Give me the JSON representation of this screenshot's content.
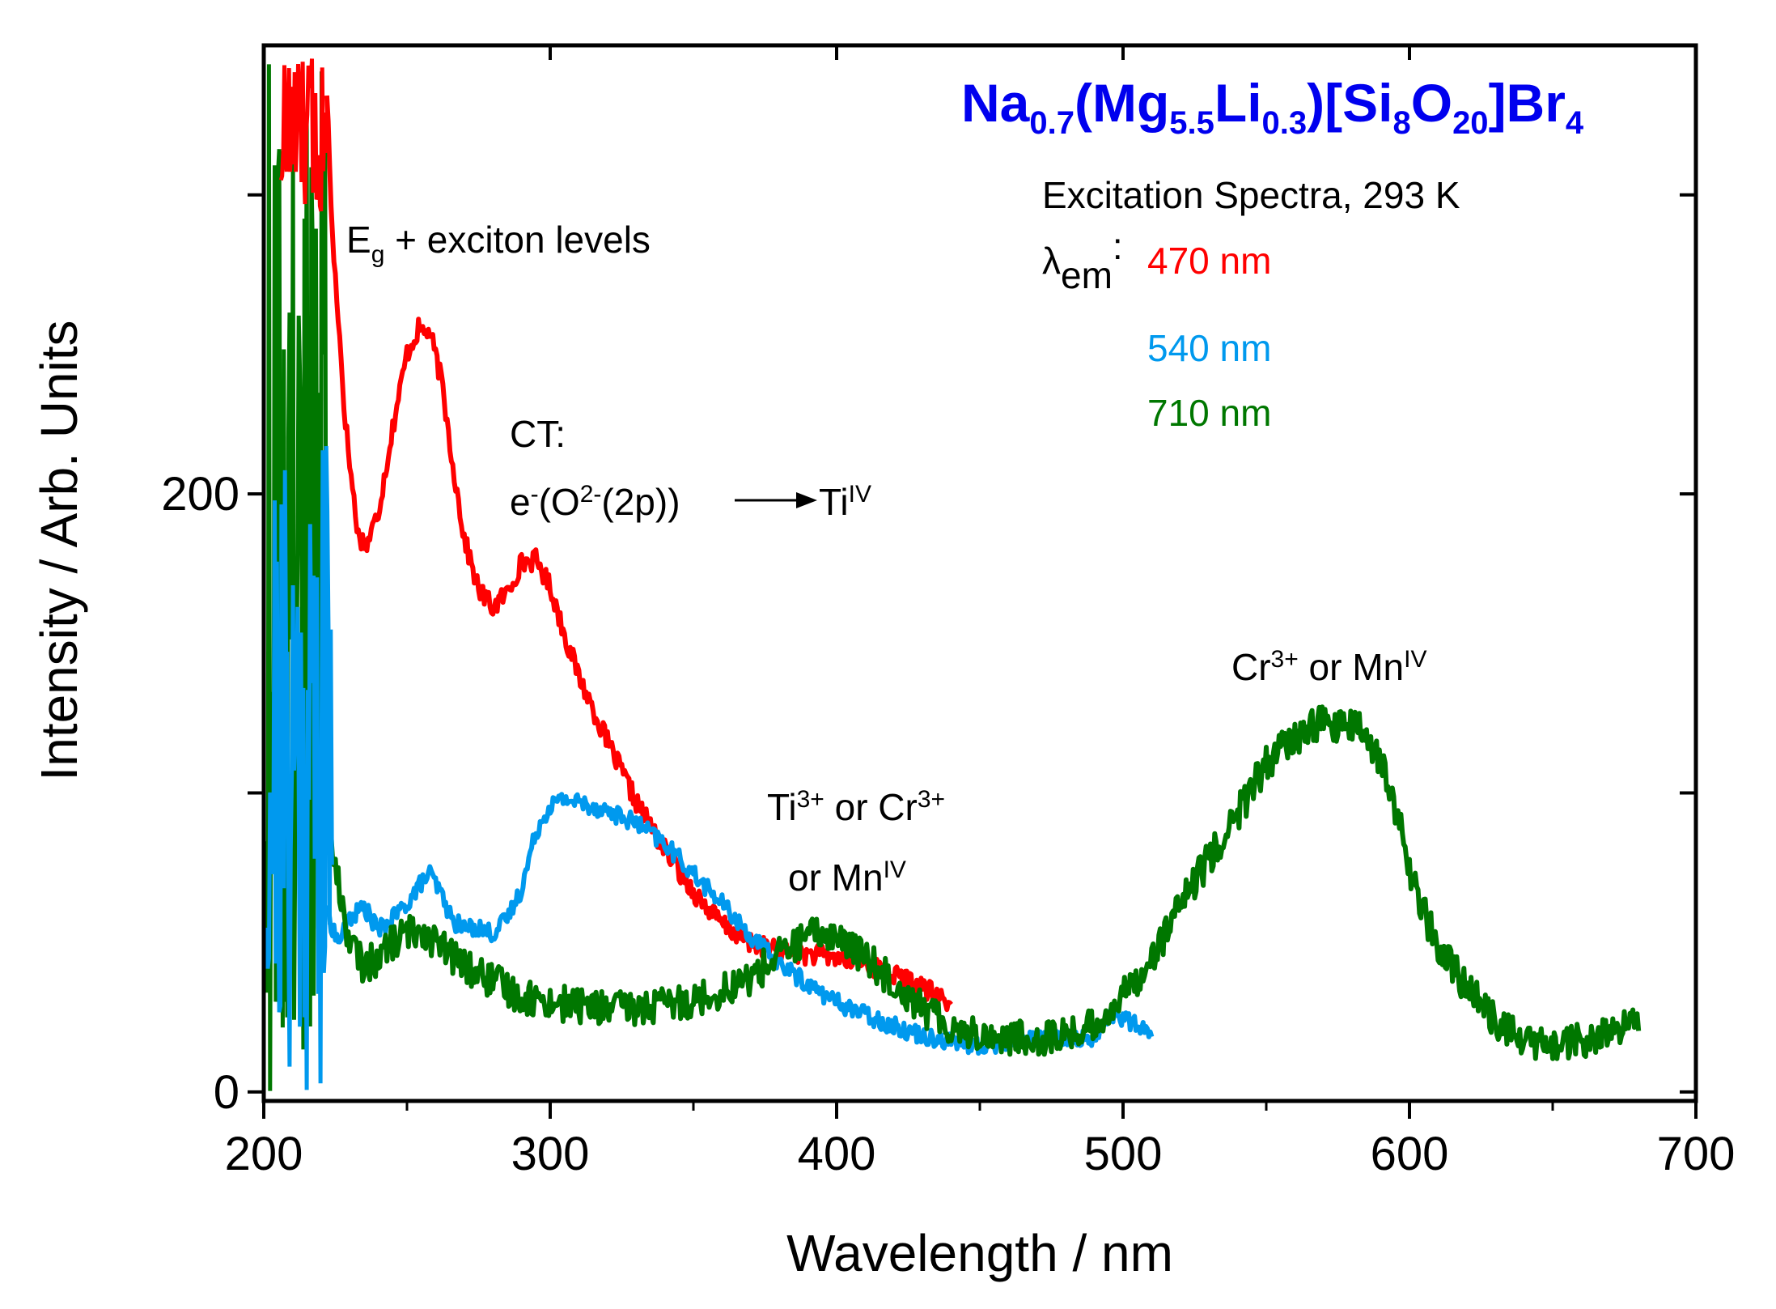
{
  "chart_data": {
    "type": "line",
    "title": {
      "parts": [
        {
          "text": "Na",
          "sub": "0.7"
        },
        {
          "text": "(Mg",
          "sub": "5.5"
        },
        {
          "text": "Li",
          "sub": "0.3"
        },
        {
          "text": ")[Si",
          "sub": "8"
        },
        {
          "text": "O",
          "sub": "20"
        },
        {
          "text": "]Br",
          "sub": "4"
        }
      ],
      "color": "#0000ee"
    },
    "subtitle": "Excitation Spectra, 293 K",
    "legend_label": {
      "symbol": "λ",
      "sub": "em",
      "suffix": ":"
    },
    "xlabel": "Wavelength / nm",
    "ylabel": "Intensity / Arb. Units",
    "xlim": [
      200,
      700
    ],
    "ylim": [
      -3,
      350
    ],
    "xticks": [
      "200",
      "300",
      "400",
      "500",
      "600",
      "700"
    ],
    "yticks": [
      "0",
      "200"
    ],
    "series": [
      {
        "name": "470 nm",
        "color": "#ff0000",
        "x": [
          222,
          224,
          226,
          228,
          230,
          233,
          236,
          240,
          245,
          250,
          254,
          258,
          262,
          266,
          270,
          275,
          280,
          285,
          290,
          295,
          300,
          305,
          310,
          320,
          330,
          340,
          350,
          360,
          370,
          380,
          390,
          400,
          410,
          420,
          430,
          440
        ],
        "y": [
          335,
          285,
          260,
          230,
          210,
          186,
          183,
          194,
          222,
          247,
          255,
          254,
          238,
          210,
          185,
          168,
          162,
          167,
          177,
          178,
          169,
          153,
          139,
          117,
          97,
          81,
          67,
          56,
          50,
          47,
          46,
          45,
          43,
          39,
          35,
          29
        ]
      },
      {
        "name": "540 nm",
        "color": "#0099ee",
        "x": [
          222,
          226,
          230,
          235,
          240,
          245,
          250,
          255,
          258,
          262,
          266,
          270,
          275,
          280,
          285,
          290,
          295,
          300,
          305,
          310,
          320,
          330,
          340,
          350,
          360,
          370,
          380,
          390,
          400,
          410,
          420,
          430,
          440,
          450,
          460,
          470,
          480,
          490,
          495,
          500,
          505,
          510
        ],
        "y": [
          60,
          50,
          58,
          62,
          54,
          58,
          63,
          70,
          73,
          66,
          57,
          55,
          55,
          53,
          58,
          68,
          87,
          96,
          98,
          97,
          94,
          90,
          83,
          73,
          63,
          52,
          43,
          36,
          30,
          26,
          22,
          19,
          17,
          15,
          17,
          18,
          18,
          18,
          26,
          25,
          22,
          19
        ]
      },
      {
        "name": "710 nm",
        "color": "#007700",
        "x": [
          222,
          226,
          230,
          235,
          240,
          245,
          250,
          255,
          260,
          265,
          270,
          280,
          290,
          300,
          310,
          320,
          330,
          340,
          350,
          360,
          370,
          380,
          390,
          395,
          400,
          410,
          420,
          430,
          440,
          450,
          460,
          470,
          480,
          490,
          500,
          510,
          520,
          530,
          540,
          550,
          560,
          565,
          570,
          575,
          580,
          585,
          590,
          595,
          600,
          605,
          610,
          620,
          630,
          640,
          650,
          660,
          670,
          675,
          680
        ],
        "y": [
          90,
          70,
          50,
          42,
          45,
          50,
          53,
          55,
          50,
          46,
          42,
          37,
          32,
          30,
          29,
          28,
          28,
          29,
          31,
          34,
          38,
          46,
          52,
          53,
          52,
          45,
          37,
          28,
          22,
          19,
          18,
          18,
          19,
          22,
          32,
          45,
          62,
          78,
          93,
          110,
          118,
          122,
          124,
          122,
          122,
          120,
          110,
          95,
          75,
          60,
          48,
          35,
          24,
          17,
          15,
          17,
          19,
          21,
          24
        ]
      }
    ],
    "annotations": [
      {
        "id": "eg",
        "parts": [
          {
            "t": "E"
          },
          {
            "t": "g",
            "sub": true
          },
          {
            "t": " + exciton levels"
          }
        ]
      },
      {
        "id": "ct1",
        "parts": [
          {
            "t": "CT:"
          }
        ]
      },
      {
        "id": "ct2",
        "parts": [
          {
            "t": "e"
          },
          {
            "t": "-",
            "sup": true
          },
          {
            "t": "(O"
          },
          {
            "t": "2-",
            "sup": true
          },
          {
            "t": "(2p))"
          }
        ]
      },
      {
        "id": "ct3",
        "parts": [
          {
            "t": "Ti"
          },
          {
            "t": "IV",
            "sup": true
          }
        ]
      },
      {
        "id": "ti1",
        "parts": [
          {
            "t": "Ti"
          },
          {
            "t": "3+",
            "sup": true
          },
          {
            "t": " or Cr"
          },
          {
            "t": "3+",
            "sup": true
          }
        ]
      },
      {
        "id": "ti2",
        "parts": [
          {
            "t": "or Mn"
          },
          {
            "t": "IV",
            "sup": true
          }
        ]
      },
      {
        "id": "cr",
        "parts": [
          {
            "t": "Cr"
          },
          {
            "t": "3+",
            "sup": true
          },
          {
            "t": " or Mn"
          },
          {
            "t": "IV",
            "sup": true
          }
        ]
      }
    ]
  }
}
